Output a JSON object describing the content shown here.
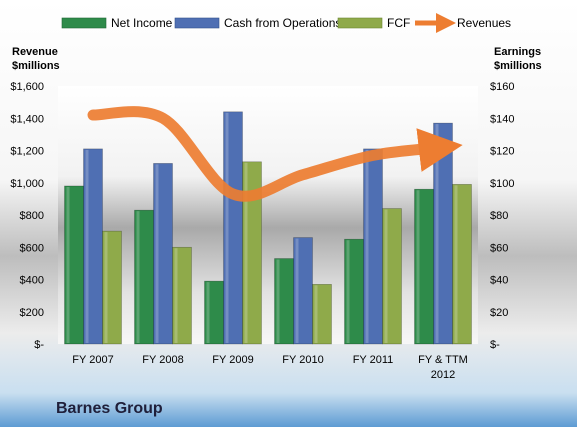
{
  "chart_data": {
    "type": "bar",
    "categories": [
      [
        "FY 2007"
      ],
      [
        "FY 2008"
      ],
      [
        "FY 2009"
      ],
      [
        "FY 2010"
      ],
      [
        "FY 2011"
      ],
      [
        "FY & TTM",
        "2012"
      ]
    ],
    "series": [
      {
        "name": "Net Income",
        "axis": "earnings",
        "values": [
          98,
          83,
          39,
          53,
          65,
          96
        ],
        "color": "#2e8b4a"
      },
      {
        "name": "Cash from Operations",
        "axis": "earnings",
        "values": [
          121,
          112,
          144,
          66,
          121,
          137
        ],
        "color": "#4f6fb3"
      },
      {
        "name": "FCF",
        "axis": "earnings",
        "values": [
          70,
          60,
          113,
          37,
          84,
          99
        ],
        "color": "#8faa4a"
      }
    ],
    "line_series": {
      "name": "Revenues",
      "axis": "revenue",
      "values": [
        1420,
        1400,
        930,
        1050,
        1170,
        1220
      ],
      "color": "#ed7d31"
    },
    "left_axis": {
      "title": [
        "Revenue",
        "$millions"
      ],
      "min": 0,
      "max": 1600,
      "step": 200,
      "tick_labels": [
        "$-",
        "$200",
        "$400",
        "$600",
        "$800",
        "$1,000",
        "$1,200",
        "$1,400",
        "$1,600"
      ]
    },
    "right_axis": {
      "title": [
        "Earnings",
        "$millions"
      ],
      "min": 0,
      "max": 160,
      "step": 20,
      "tick_labels": [
        "$-",
        "$20",
        "$40",
        "$60",
        "$80",
        "$100",
        "$120",
        "$140",
        "$160"
      ]
    },
    "legend_position": "top",
    "company": "Barnes Group"
  }
}
